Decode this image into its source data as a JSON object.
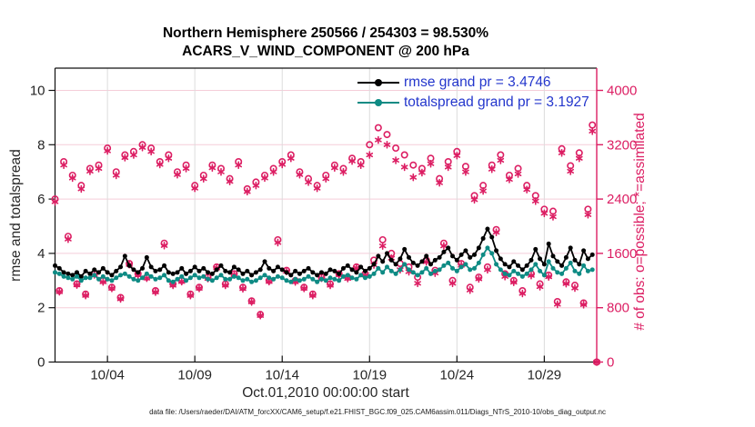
{
  "figure": {
    "title_line1": "Northern Hemisphere 250566 / 254303 = 98.530%",
    "title_line2": "ACARS_V_WIND_COMPONENT @ 200 hPa",
    "xlabel": "Oct.01,2010 00:00:00 start",
    "ylabel_left": "rmse and totalspread",
    "ylabel_right": "# of obs: o=possible; *=assimilated",
    "caption": "data file: /Users/raeder/DAI/ATM_forcXX/CAM6_setup/f.e21.FHIST_BGC.f09_025.CAM6assim.011/Diags_NTrS_2010-10/obs_diag_output.nc"
  },
  "legend": {
    "text_color": "#2336cc",
    "items": [
      {
        "label": "rmse grand pr = 3.4746",
        "color": "#000000"
      },
      {
        "label": "totalspread grand pr = 3.1927",
        "color": "#0e8b84"
      }
    ]
  },
  "colors": {
    "obs_pink": "#dc1e63",
    "grid_h_pink": "#f5cdd9",
    "grid_v_gray": "#dcdcdc",
    "axis_dark": "#111111",
    "tick_text": "#262626",
    "teal": "#0e8b84",
    "black": "#000000"
  },
  "chart_data": {
    "type": "line",
    "description": "6-hourly bins starting Oct 1 2010 00:00 UTC; rmse/totalspread on left axis, obs counts on right axis (right = left x 400)",
    "time_axis": {
      "start_day": 1,
      "end_day": 32,
      "step_days": 0.25,
      "tick_days": [
        4,
        9,
        14,
        19,
        24,
        29
      ],
      "tick_labels": [
        "10/04",
        "10/09",
        "10/14",
        "10/19",
        "10/24",
        "10/29"
      ]
    },
    "left_axis": {
      "ticks": [
        0,
        2,
        4,
        6,
        8,
        10
      ],
      "lim": [
        0,
        10.82
      ]
    },
    "right_axis": {
      "ticks": [
        0,
        800,
        1600,
        2400,
        3200,
        4000
      ],
      "lim": [
        0,
        4328
      ],
      "scale_vs_left": 400
    },
    "series": [
      {
        "name": "rmse",
        "axis": "left",
        "color": "#000000",
        "marker": "dot",
        "values": [
          3.55,
          3.45,
          3.3,
          3.25,
          3.2,
          3.3,
          3.15,
          3.35,
          3.25,
          3.4,
          3.3,
          3.45,
          3.3,
          3.2,
          3.35,
          3.5,
          3.9,
          3.55,
          3.4,
          3.3,
          3.45,
          3.85,
          3.5,
          3.35,
          3.4,
          3.55,
          3.3,
          3.25,
          3.3,
          3.45,
          3.25,
          3.35,
          3.5,
          3.35,
          3.45,
          3.3,
          3.25,
          3.4,
          3.55,
          3.35,
          3.3,
          3.5,
          3.4,
          3.25,
          3.35,
          3.2,
          3.3,
          3.4,
          3.7,
          3.45,
          3.35,
          3.5,
          3.4,
          3.3,
          3.2,
          3.35,
          3.25,
          3.35,
          3.45,
          3.3,
          3.2,
          3.3,
          3.25,
          3.4,
          3.35,
          3.25,
          3.45,
          3.55,
          3.4,
          3.3,
          3.5,
          3.35,
          3.45,
          3.6,
          3.9,
          3.7,
          4.0,
          3.75,
          3.6,
          3.8,
          4.15,
          3.85,
          3.65,
          3.55,
          3.7,
          3.9,
          3.6,
          3.75,
          3.85,
          4.05,
          4.2,
          3.9,
          3.75,
          3.95,
          4.1,
          3.85,
          3.95,
          4.2,
          4.55,
          4.9,
          4.6,
          4.1,
          3.8,
          3.6,
          3.5,
          3.7,
          3.55,
          3.4,
          3.55,
          3.75,
          4.15,
          3.8,
          3.6,
          4.35,
          3.9,
          3.7,
          3.55,
          3.85,
          4.2,
          3.75,
          3.6,
          4.1,
          3.8,
          3.95
        ]
      },
      {
        "name": "totalspread",
        "axis": "left",
        "color": "#0e8b84",
        "marker": "dot",
        "values": [
          3.3,
          3.25,
          3.15,
          3.1,
          3.05,
          3.15,
          3.0,
          3.1,
          3.1,
          3.2,
          3.05,
          3.15,
          3.05,
          3.0,
          3.1,
          3.2,
          3.25,
          3.15,
          3.05,
          3.0,
          3.1,
          3.25,
          3.15,
          3.05,
          3.1,
          3.2,
          3.0,
          2.95,
          3.05,
          3.15,
          3.0,
          3.1,
          3.2,
          3.1,
          3.15,
          3.05,
          3.0,
          3.1,
          3.2,
          3.05,
          3.05,
          3.15,
          3.1,
          3.0,
          3.05,
          2.95,
          3.0,
          3.1,
          3.2,
          3.1,
          3.05,
          3.15,
          3.1,
          3.0,
          2.95,
          3.05,
          3.0,
          3.05,
          3.15,
          3.05,
          2.95,
          3.05,
          3.0,
          3.1,
          3.05,
          3.0,
          3.15,
          3.2,
          3.1,
          3.05,
          3.2,
          3.1,
          3.15,
          3.25,
          3.45,
          3.3,
          3.5,
          3.35,
          3.25,
          3.4,
          3.6,
          3.4,
          3.3,
          3.2,
          3.3,
          3.45,
          3.25,
          3.35,
          3.4,
          3.55,
          3.65,
          3.45,
          3.35,
          3.5,
          3.6,
          3.4,
          3.45,
          3.65,
          3.95,
          4.2,
          4.0,
          3.6,
          3.4,
          3.25,
          3.2,
          3.35,
          3.25,
          3.15,
          3.25,
          3.4,
          3.6,
          3.35,
          3.2,
          3.7,
          3.45,
          3.3,
          3.25,
          3.45,
          3.65,
          3.35,
          3.25,
          3.55,
          3.35,
          3.4
        ]
      },
      {
        "name": "N_possible",
        "axis": "right",
        "color": "#dc1e63",
        "marker": "o",
        "values": [
          2400,
          1050,
          2950,
          1850,
          2750,
          1150,
          2600,
          1000,
          2850,
          1300,
          2900,
          1200,
          3150,
          1100,
          2800,
          950,
          3050,
          1450,
          3100,
          1300,
          3200,
          1250,
          3150,
          1050,
          2950,
          1750,
          3050,
          1150,
          2800,
          1200,
          2900,
          1000,
          2600,
          1100,
          2750,
          1250,
          2900,
          1400,
          2850,
          1150,
          2700,
          1300,
          2950,
          1100,
          2550,
          900,
          2650,
          700,
          2750,
          1200,
          2850,
          1800,
          2950,
          1350,
          3050,
          1200,
          2800,
          1100,
          2700,
          1000,
          2600,
          1250,
          2750,
          1150,
          2900,
          1300,
          2850,
          1250,
          3000,
          1400,
          2950,
          1300,
          3200,
          1500,
          3450,
          1800,
          3350,
          1600,
          3150,
          1450,
          3050,
          1400,
          2900,
          1250,
          2850,
          1500,
          3000,
          1350,
          2700,
          1750,
          2950,
          1200,
          3100,
          1450,
          2880,
          1100,
          2450,
          1250,
          2600,
          1400,
          2900,
          1950,
          3050,
          1300,
          2750,
          1200,
          2850,
          1050,
          2600,
          1300,
          2450,
          1150,
          2250,
          1280,
          2220,
          890,
          3140,
          1180,
          2890,
          1130,
          3080,
          870,
          2250,
          3490,
          0
        ]
      },
      {
        "name": "N_assimilated",
        "axis": "right",
        "color": "#dc1e63",
        "marker": "asterisk",
        "values": [
          2360,
          1035,
          2900,
          1810,
          2710,
          1135,
          2550,
          980,
          2810,
          1285,
          2850,
          1180,
          3110,
          1085,
          2750,
          930,
          3010,
          1435,
          3050,
          1280,
          3160,
          1235,
          3100,
          1030,
          2910,
          1715,
          3000,
          1130,
          2760,
          1185,
          2850,
          980,
          2560,
          1085,
          2700,
          1230,
          2860,
          1385,
          2800,
          1130,
          2660,
          1285,
          2900,
          1080,
          2510,
          885,
          2600,
          685,
          2710,
          1185,
          2800,
          1760,
          2910,
          1335,
          3000,
          1180,
          2760,
          1085,
          2650,
          980,
          2560,
          1235,
          2700,
          1130,
          2860,
          1285,
          2800,
          1230,
          2960,
          1385,
          2900,
          1280,
          3050,
          1430,
          3270,
          1710,
          3200,
          1530,
          2970,
          1360,
          2870,
          1330,
          2720,
          1160,
          2790,
          1475,
          2920,
          1310,
          2640,
          1710,
          2870,
          1160,
          3040,
          1425,
          2800,
          1060,
          2390,
          1225,
          2520,
          1360,
          2840,
          1910,
          2970,
          1260,
          2690,
          1175,
          2770,
          1010,
          2540,
          1275,
          2370,
          1110,
          2190,
          1255,
          2140,
          850,
          3080,
          1155,
          2810,
          1090,
          3000,
          845,
          2170,
          3400,
          0
        ]
      }
    ]
  }
}
